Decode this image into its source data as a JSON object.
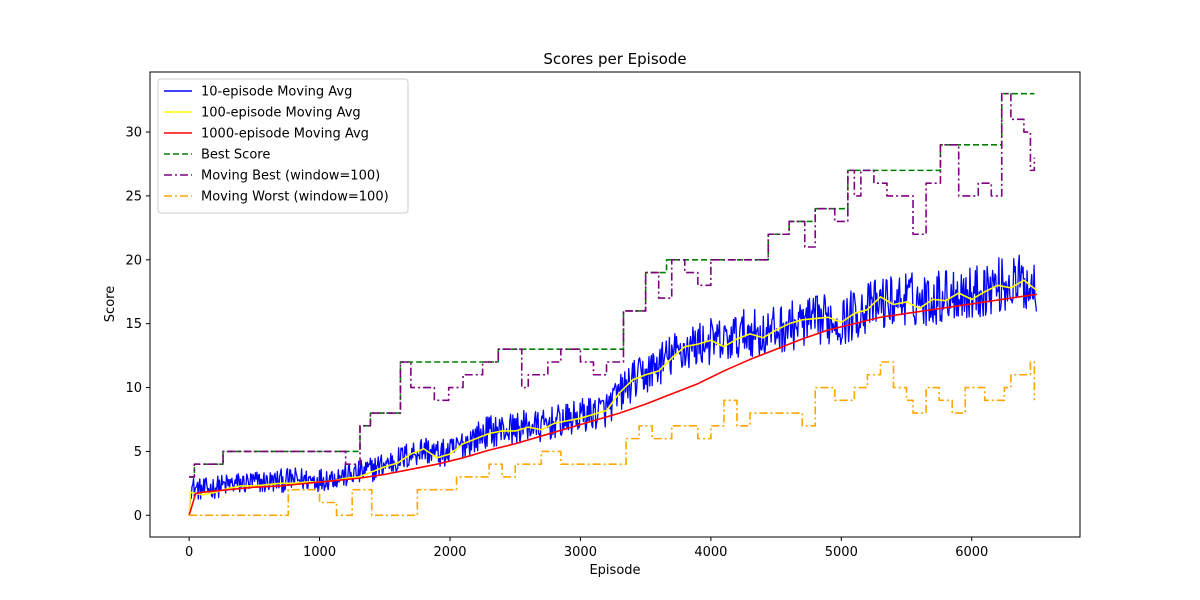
{
  "chart_data": {
    "type": "line",
    "title": "Scores per Episode",
    "xlabel": "Episode",
    "ylabel": "Score",
    "xlim": [
      -300,
      6830
    ],
    "ylim": [
      -1.7,
      34.7
    ],
    "xticks": [
      0,
      1000,
      2000,
      3000,
      4000,
      5000,
      6000
    ],
    "yticks": [
      0,
      5,
      10,
      15,
      20,
      25,
      30
    ],
    "grid": false,
    "legend_position": "upper-left",
    "series": [
      {
        "name": "10-episode Moving Avg",
        "color": "#0000ff",
        "style": "solid",
        "noisy": true,
        "x": [
          0,
          10,
          100,
          200,
          300,
          400,
          500,
          600,
          700,
          800,
          900,
          1000,
          1100,
          1200,
          1300,
          1400,
          1500,
          1600,
          1700,
          1800,
          1900,
          2000,
          2100,
          2200,
          2300,
          2400,
          2500,
          2600,
          2700,
          2800,
          2900,
          3000,
          3100,
          3200,
          3300,
          3400,
          3500,
          3600,
          3700,
          3800,
          3900,
          4000,
          4100,
          4200,
          4300,
          4400,
          4500,
          4600,
          4700,
          4800,
          4900,
          5000,
          5100,
          5200,
          5300,
          5400,
          5500,
          5600,
          5700,
          5800,
          5900,
          6000,
          6100,
          6200,
          6300,
          6400,
          6500
        ],
        "y": [
          0,
          2.2,
          2.0,
          2.2,
          2.4,
          2.5,
          2.6,
          2.6,
          2.7,
          2.8,
          2.8,
          2.8,
          3.0,
          3.1,
          3.3,
          3.6,
          4.0,
          4.3,
          4.8,
          5.2,
          4.8,
          4.9,
          5.6,
          6.1,
          6.6,
          6.7,
          6.8,
          7.0,
          6.9,
          7.3,
          7.4,
          7.8,
          8.0,
          8.3,
          9.5,
          10.5,
          11.0,
          11.8,
          12.5,
          13.0,
          13.4,
          13.6,
          13.5,
          14.0,
          14.4,
          14.1,
          14.5,
          14.8,
          15.0,
          15.2,
          15.4,
          15.1,
          15.8,
          16.2,
          16.6,
          16.8,
          17.0,
          16.8,
          17.0,
          17.3,
          17.5,
          17.3,
          17.8,
          18.0,
          18.1,
          18.2,
          17.8
        ]
      },
      {
        "name": "100-episode Moving Avg",
        "color": "#ffff00",
        "style": "solid",
        "x": [
          0,
          10,
          100,
          200,
          300,
          400,
          500,
          600,
          700,
          800,
          900,
          1000,
          1100,
          1200,
          1300,
          1400,
          1500,
          1600,
          1700,
          1800,
          1900,
          2000,
          2100,
          2200,
          2300,
          2400,
          2500,
          2600,
          2700,
          2800,
          2900,
          3000,
          3100,
          3200,
          3300,
          3400,
          3500,
          3600,
          3700,
          3800,
          3900,
          4000,
          4100,
          4200,
          4300,
          4400,
          4500,
          4600,
          4700,
          4800,
          4900,
          5000,
          5100,
          5200,
          5300,
          5400,
          5500,
          5600,
          5700,
          5800,
          5900,
          6000,
          6100,
          6200,
          6300,
          6400,
          6500
        ],
        "y": [
          0,
          1.8,
          1.6,
          1.8,
          2.1,
          2.3,
          2.3,
          2.4,
          2.5,
          2.5,
          2.6,
          2.6,
          2.7,
          2.9,
          3.0,
          3.4,
          3.8,
          4.1,
          4.8,
          5.2,
          4.5,
          4.8,
          5.6,
          6.0,
          6.4,
          6.6,
          6.6,
          6.9,
          6.7,
          7.2,
          7.4,
          7.6,
          7.9,
          8.2,
          9.6,
          10.6,
          11.0,
          11.3,
          12.3,
          13.2,
          13.4,
          13.7,
          13.2,
          13.8,
          14.2,
          13.9,
          14.5,
          15.0,
          15.3,
          15.4,
          15.5,
          15.1,
          15.8,
          16.1,
          17.1,
          16.5,
          16.7,
          16.2,
          16.9,
          16.8,
          17.4,
          16.9,
          17.5,
          18.0,
          17.8,
          18.4,
          17.6
        ]
      },
      {
        "name": "1000-episode Moving Avg",
        "color": "#ff0000",
        "style": "solid",
        "x": [
          0,
          50,
          100,
          300,
          500,
          700,
          900,
          1100,
          1300,
          1500,
          1700,
          1900,
          2100,
          2300,
          2500,
          2700,
          2900,
          3100,
          3300,
          3500,
          3700,
          3900,
          4100,
          4300,
          4500,
          4700,
          4900,
          5100,
          5300,
          5500,
          5700,
          5900,
          6100,
          6300,
          6500
        ],
        "y": [
          0,
          1.7,
          1.8,
          2.0,
          2.2,
          2.3,
          2.5,
          2.7,
          2.9,
          3.2,
          3.6,
          4.0,
          4.5,
          5.1,
          5.6,
          6.2,
          6.8,
          7.4,
          8.0,
          8.7,
          9.5,
          10.3,
          11.3,
          12.2,
          13.0,
          13.8,
          14.5,
          15.0,
          15.5,
          15.8,
          16.1,
          16.4,
          16.7,
          17.0,
          17.3
        ]
      },
      {
        "name": "Best Score",
        "color": "#008000",
        "style": "dashed",
        "step": true,
        "x": [
          0,
          40,
          260,
          1310,
          1390,
          1620,
          2370,
          3330,
          3500,
          3660,
          4440,
          4600,
          4800,
          5050,
          5760,
          6230,
          6480
        ],
        "y": [
          3,
          4,
          5,
          7,
          8,
          12,
          13,
          16,
          19,
          20,
          22,
          23,
          24,
          27,
          29,
          33,
          33
        ]
      },
      {
        "name": "Moving Best (window=100)",
        "color": "#800080",
        "style": "dashdot",
        "step": true,
        "x": [
          0,
          40,
          260,
          1200,
          1310,
          1390,
          1620,
          1700,
          1880,
          1990,
          2100,
          2250,
          2370,
          2550,
          2600,
          2750,
          2850,
          3000,
          3100,
          3200,
          3330,
          3500,
          3600,
          3700,
          3800,
          3900,
          4000,
          4100,
          4440,
          4600,
          4720,
          4800,
          4950,
          5050,
          5100,
          5150,
          5250,
          5350,
          5550,
          5650,
          5760,
          5900,
          6050,
          6150,
          6230,
          6300,
          6400,
          6450,
          6480
        ],
        "y": [
          3,
          4,
          5,
          4,
          7,
          8,
          12,
          10,
          9,
          10,
          11,
          12,
          13,
          10,
          11,
          12,
          13,
          12,
          11,
          12,
          16,
          19,
          17,
          20,
          19,
          18,
          20,
          20,
          22,
          23,
          21,
          24,
          23,
          27,
          25,
          27,
          26,
          25,
          22,
          26,
          29,
          25,
          26,
          25,
          33,
          31,
          30,
          27,
          28
        ]
      },
      {
        "name": "Moving Worst (window=100)",
        "color": "#ffa500",
        "style": "dashdot",
        "step": true,
        "x": [
          0,
          760,
          1000,
          1130,
          1250,
          1400,
          1750,
          2050,
          2300,
          2400,
          2500,
          2600,
          2700,
          2850,
          3000,
          3100,
          3350,
          3450,
          3550,
          3700,
          3800,
          3900,
          4000,
          4100,
          4200,
          4300,
          4500,
          4700,
          4800,
          4950,
          5100,
          5200,
          5300,
          5400,
          5500,
          5550,
          5650,
          5750,
          5850,
          5950,
          6100,
          6250,
          6300,
          6450,
          6480
        ],
        "y": [
          0,
          2,
          1,
          0,
          2,
          0,
          2,
          3,
          4,
          3,
          4,
          4,
          5,
          4,
          4,
          4,
          6,
          7,
          6,
          7,
          7,
          6,
          7,
          9,
          7,
          8,
          8,
          7,
          10,
          9,
          10,
          11,
          12,
          10,
          9,
          8,
          10,
          9,
          8,
          10,
          9,
          10,
          11,
          12,
          9
        ]
      }
    ]
  }
}
